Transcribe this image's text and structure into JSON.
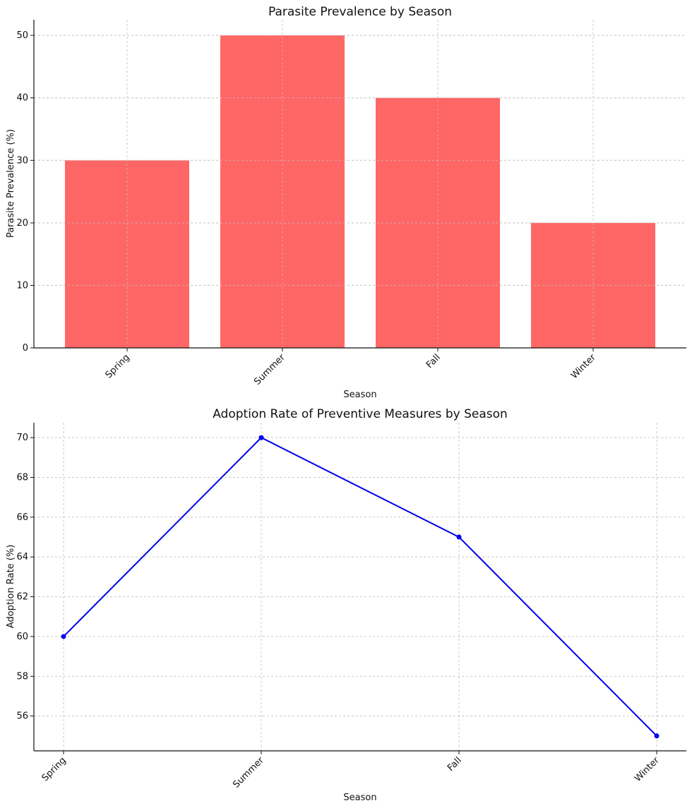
{
  "chart_data": [
    {
      "type": "bar",
      "title": "Parasite Prevalence by Season",
      "xlabel": "Season",
      "ylabel": "Parasite Prevalence (%)",
      "categories": [
        "Spring",
        "Summer",
        "Fall",
        "Winter"
      ],
      "values": [
        30,
        50,
        40,
        20
      ],
      "ylim": [
        0,
        52.5
      ],
      "yticks": [
        0,
        10,
        20,
        30,
        40,
        50
      ],
      "color": "#ff6666",
      "grid": true
    },
    {
      "type": "line",
      "title": "Adoption Rate of Preventive Measures by Season",
      "xlabel": "Season",
      "ylabel": "Adoption Rate (%)",
      "categories": [
        "Spring",
        "Summer",
        "Fall",
        "Winter"
      ],
      "values": [
        60,
        70,
        65,
        55
      ],
      "ylim": [
        54.25,
        70.75
      ],
      "yticks": [
        56,
        58,
        60,
        62,
        64,
        66,
        68,
        70
      ],
      "color": "#0000ee",
      "marker": "circle",
      "grid": true
    }
  ]
}
